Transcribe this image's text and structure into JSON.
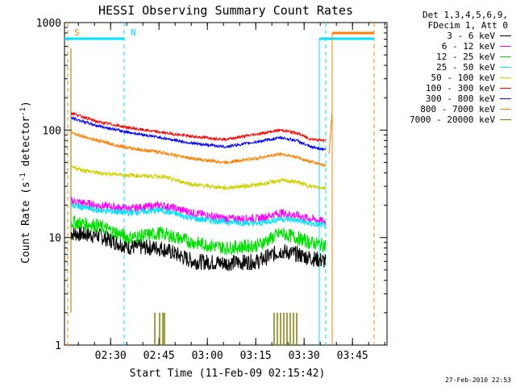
{
  "chart_data": {
    "type": "line",
    "title": "HESSI Observing Summary Count Rates",
    "xlabel": "Start Time (11-Feb-09 02:15:42)",
    "ylabel_main": "Count Rate (s",
    "ylabel_sup1": "-1",
    "ylabel_mid": " detector",
    "ylabel_sup2": "-1",
    "ylabel_end": ")",
    "yscale": "log",
    "ylim": [
      1,
      1000
    ],
    "xlim_minutes": [
      0,
      100
    ],
    "x_tick_labels": [
      "02:30",
      "02:45",
      "03:00",
      "03:15",
      "03:30",
      "03:45"
    ],
    "x_tick_minutes": [
      14.3,
      29.3,
      44.3,
      59.3,
      74.3,
      89.3
    ],
    "y_tick_labels": [
      "1",
      "10",
      "100",
      "1000"
    ],
    "y_tick_values": [
      1,
      10,
      100,
      1000
    ],
    "annotations": [
      {
        "text": "S",
        "color": "#ff8000",
        "x_minutes": 2
      },
      {
        "text": "N",
        "color": "#00d8ff",
        "x_minutes": 19.5
      }
    ],
    "legend_header": [
      "Det 1,3,4,5,6,9,",
      "FDecim 1, Att 0"
    ],
    "series": [
      {
        "name": "3 - 6 keV",
        "color": "#000000",
        "x": [
          2,
          10,
          20,
          30,
          40,
          50,
          60,
          67,
          72,
          76,
          81
        ],
        "y": [
          11,
          10.5,
          8.2,
          8,
          6,
          5.8,
          6,
          7.5,
          7,
          6.5,
          6
        ]
      },
      {
        "name": "6 - 12 keV",
        "color": "#ff00ff",
        "x": [
          2,
          10,
          20,
          30,
          40,
          50,
          60,
          67,
          72,
          76,
          81
        ],
        "y": [
          22,
          20,
          18.5,
          20,
          17,
          15,
          15,
          17,
          16,
          15,
          14
        ]
      },
      {
        "name": "12 - 25 keV",
        "color": "#00e000",
        "x": [
          2,
          10,
          20,
          30,
          40,
          50,
          60,
          67,
          72,
          76,
          81
        ],
        "y": [
          14,
          13,
          10,
          11,
          9,
          8,
          8.5,
          11,
          10,
          9,
          8.5
        ]
      },
      {
        "name": "25 - 50 keV",
        "color": "#00e0ff",
        "x": [
          2,
          10,
          20,
          30,
          40,
          50,
          60,
          67,
          72,
          76,
          81
        ],
        "y": [
          20,
          18,
          17,
          18,
          15,
          14,
          13.5,
          15,
          14.5,
          13.5,
          13
        ]
      },
      {
        "name": "50 - 100 keV",
        "color": "#d0d000",
        "x": [
          2,
          10,
          20,
          30,
          40,
          50,
          60,
          67,
          72,
          76,
          81
        ],
        "y": [
          45,
          40,
          38,
          37,
          31,
          29,
          31,
          34,
          33,
          30,
          29
        ]
      },
      {
        "name": "100 - 300 keV",
        "color": "#ff0000",
        "x": [
          2,
          10,
          20,
          30,
          40,
          50,
          60,
          67,
          72,
          76,
          81
        ],
        "y": [
          145,
          120,
          105,
          95,
          87,
          82,
          92,
          100,
          94,
          83,
          80
        ]
      },
      {
        "name": "300 - 800 keV",
        "color": "#0000ff",
        "x": [
          2,
          10,
          20,
          30,
          40,
          50,
          60,
          67,
          72,
          76,
          81
        ],
        "y": [
          130,
          110,
          95,
          85,
          75,
          70,
          78,
          85,
          80,
          70,
          66
        ]
      },
      {
        "name": "800 - 7000 keV",
        "color": "#ff8000",
        "x": [
          2,
          10,
          20,
          30,
          40,
          50,
          60,
          67,
          72,
          76,
          81
        ],
        "y": [
          95,
          80,
          68,
          62,
          54,
          50,
          55,
          60,
          56,
          51,
          47
        ]
      },
      {
        "name": "7000 - 20000 keV",
        "color": "#808000",
        "x": [],
        "y": []
      }
    ]
  },
  "footer": {
    "date": "27-Feb-2010 22:53"
  }
}
